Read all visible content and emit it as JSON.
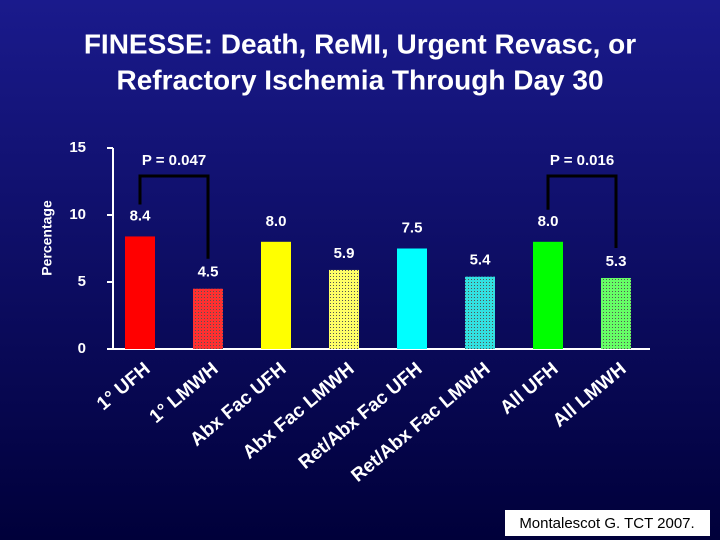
{
  "chart_data": {
    "type": "bar",
    "title": [
      "FINESSE: Death, ReMI, Urgent Revasc, or",
      "Refractory Ischemia Through Day 30"
    ],
    "y_label": "Percentage",
    "categories": [
      "1° UFH",
      "1° LMWH",
      "Abx Fac UFH",
      "Abx Fac LMWH",
      "Ret/Abx Fac UFH",
      "Ret/Abx Fac LMWH",
      "All UFH",
      "All LMWH"
    ],
    "values": [
      8.4,
      4.5,
      8.0,
      5.9,
      7.5,
      5.4,
      8.0,
      5.3
    ],
    "value_labels": [
      "8.4",
      "4.5",
      "8.0",
      "5.9",
      "7.5",
      "5.4",
      "8.0",
      "5.3"
    ],
    "colors": [
      "#ff0000",
      "#ff3030",
      "#ffff00",
      "#ffff66",
      "#00ffff",
      "#33e0e0",
      "#00ff00",
      "#66ff66"
    ],
    "dotted": [
      false,
      true,
      false,
      true,
      false,
      true,
      false,
      true
    ],
    "ylim": [
      0,
      15
    ],
    "yticks": [
      0,
      5,
      10,
      15
    ],
    "annotations": [
      "P = 0.047",
      "P = 0.016"
    ],
    "source": "Montalescot G. TCT 2007."
  }
}
